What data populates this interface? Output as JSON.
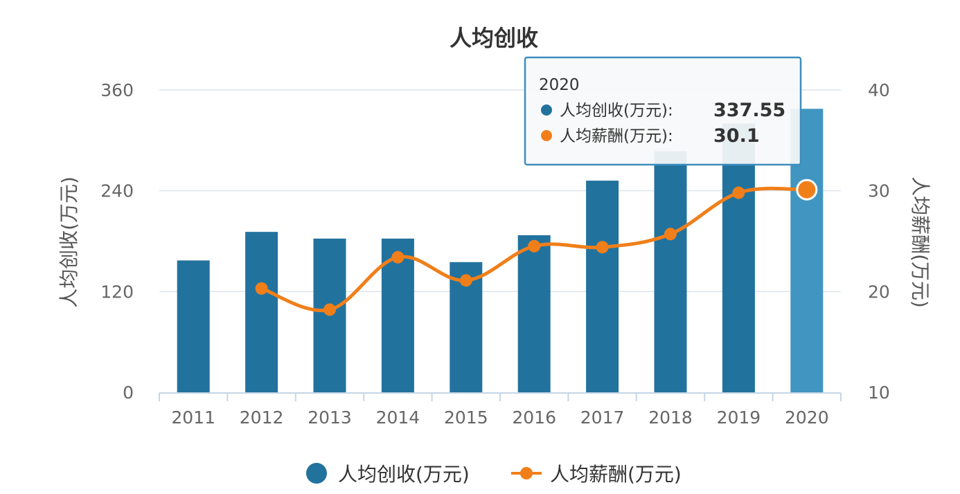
{
  "chart_data": {
    "type": "bar",
    "title": "人均创收",
    "categories": [
      "2011",
      "2012",
      "2013",
      "2014",
      "2015",
      "2016",
      "2017",
      "2018",
      "2019",
      "2020"
    ],
    "series": [
      {
        "name": "人均创收(万元)",
        "type": "bar",
        "axis": "left",
        "color": "#22729E",
        "highlight_color": "#4196C1",
        "values": [
          157,
          191,
          183,
          183,
          155,
          187,
          252,
          287,
          320,
          337.55
        ]
      },
      {
        "name": "人均薪酬(万元)",
        "type": "line",
        "axis": "right",
        "color": "#F07F1A",
        "values": [
          null,
          20.3,
          18.2,
          23.4,
          21.1,
          24.5,
          24.4,
          25.7,
          29.8,
          30.1
        ]
      }
    ],
    "y_left": {
      "label": "人均创收(万元)",
      "lim": [
        0,
        360
      ],
      "ticks": [
        "0",
        "120",
        "240",
        "360"
      ]
    },
    "y_right": {
      "label": "人均薪酬(万元)",
      "lim": [
        10,
        40
      ],
      "ticks": [
        "10",
        "20",
        "30",
        "40"
      ]
    },
    "grid": true,
    "legend": "bottom-center",
    "tooltip": {
      "category": "2020",
      "rows": [
        {
          "label": "人均创收(万元)",
          "value": "337.55",
          "color": "#22729E"
        },
        {
          "label": "人均薪酬(万元)",
          "value": "30.1",
          "color": "#F07F1A"
        }
      ]
    }
  }
}
